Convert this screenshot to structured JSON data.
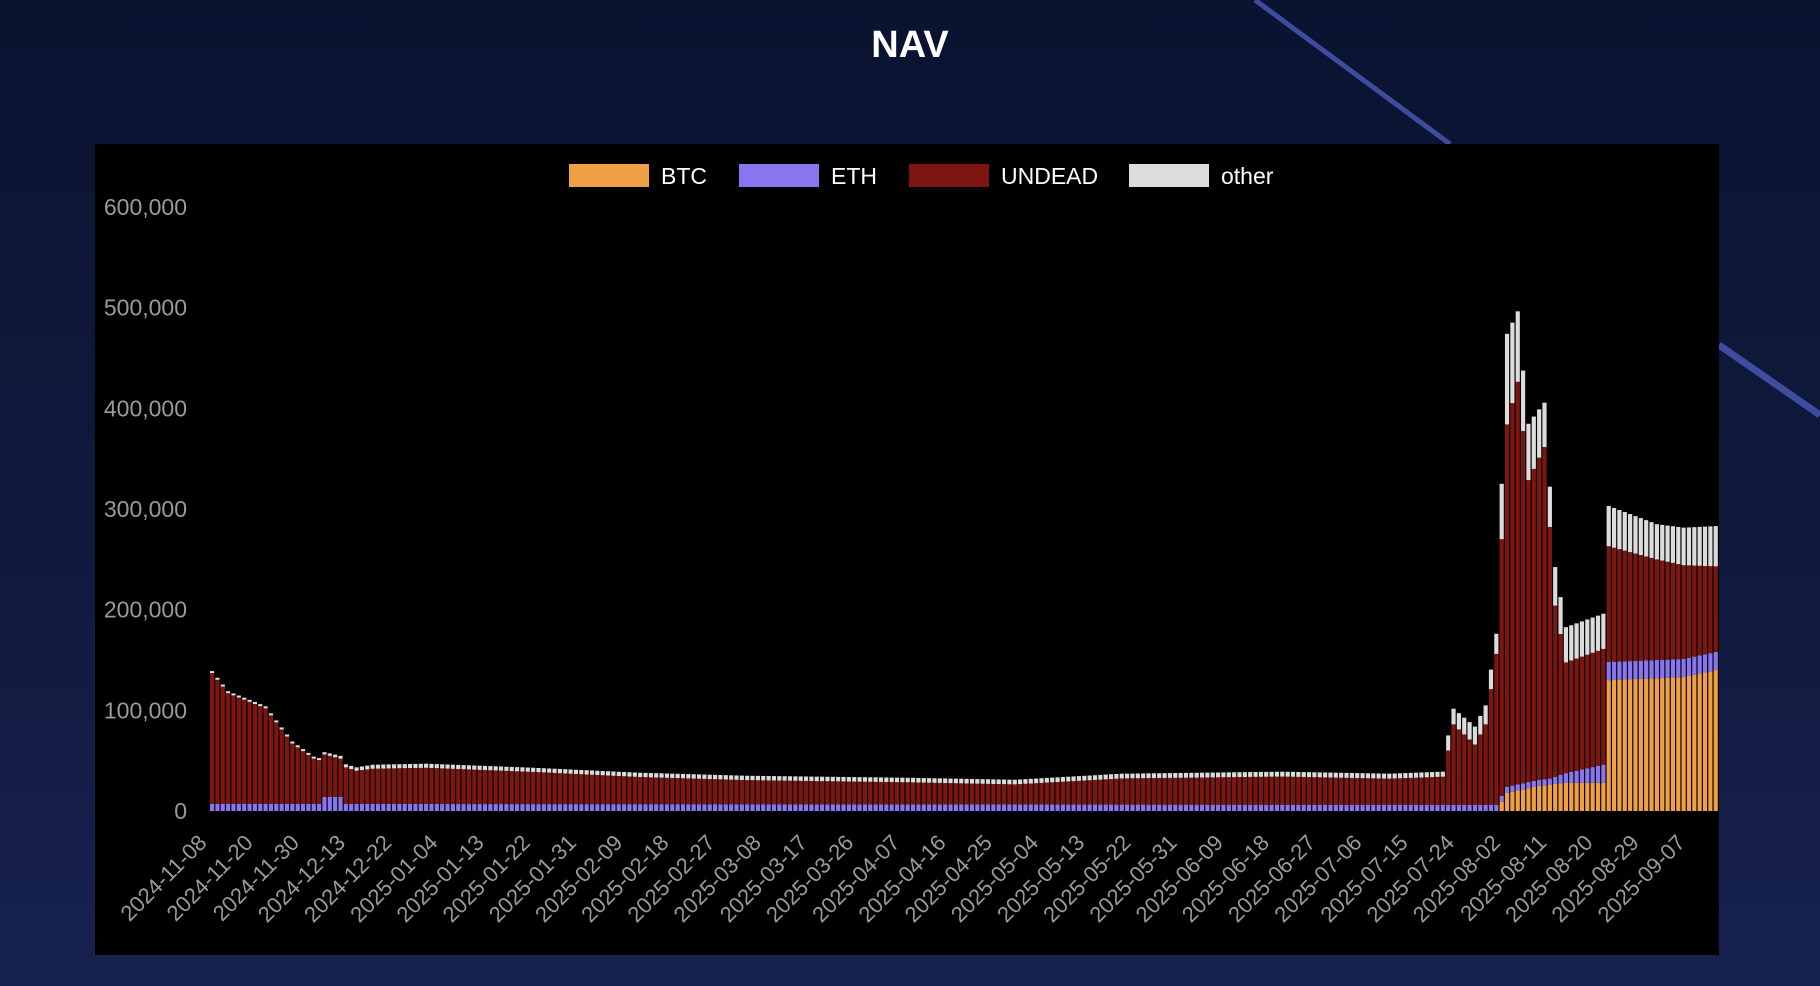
{
  "page": {
    "title": "NAV"
  },
  "colors": {
    "BTC": "#f0a044",
    "ETH": "#8a75f0",
    "UNDEAD": "#7d1610",
    "other": "#dcdcdc",
    "tick": "#9a9a9a",
    "panel": "#000000"
  },
  "chart_data": {
    "type": "bar",
    "stacked": true,
    "title": "",
    "xlabel": "",
    "ylabel": "",
    "ylim": [
      0,
      600000
    ],
    "y_ticks": [
      0,
      100000,
      200000,
      300000,
      400000,
      500000,
      600000
    ],
    "y_tick_labels": [
      "0",
      "100,000",
      "200,000",
      "300,000",
      "400,000",
      "500,000",
      "600,000"
    ],
    "legend": {
      "position": "top-center",
      "entries": [
        "BTC",
        "ETH",
        "UNDEAD",
        "other"
      ]
    },
    "grid": false,
    "x_tick_labels": [
      "2024-11-08",
      "2024-11-20",
      "2024-11-30",
      "2024-12-13",
      "2024-12-22",
      "2025-01-04",
      "2025-01-13",
      "2025-01-22",
      "2025-01-31",
      "2025-02-09",
      "2025-02-18",
      "2025-02-27",
      "2025-03-08",
      "2025-03-17",
      "2025-03-26",
      "2025-04-07",
      "2025-04-16",
      "2025-04-25",
      "2025-05-04",
      "2025-05-13",
      "2025-05-22",
      "2025-05-31",
      "2025-06-09",
      "2025-06-18",
      "2025-06-27",
      "2025-07-06",
      "2025-07-15",
      "2025-07-24",
      "2025-08-02",
      "2025-08-11",
      "2025-08-20",
      "2025-08-29",
      "2025-09-07"
    ],
    "series_keyframes": {
      "comment_free": true,
      "BTC": [
        [
          0,
          0
        ],
        [
          240,
          0
        ],
        [
          242,
          18000
        ],
        [
          248,
          25000
        ],
        [
          253,
          28000
        ],
        [
          260,
          28000
        ],
        [
          261,
          130000
        ],
        [
          275,
          133000
        ],
        [
          281,
          140000
        ]
      ],
      "ETH": [
        [
          0,
          7000
        ],
        [
          20,
          7000
        ],
        [
          21,
          14000
        ],
        [
          24,
          14000
        ],
        [
          25,
          7000
        ],
        [
          250,
          6000
        ],
        [
          260,
          18000
        ],
        [
          281,
          18000
        ]
      ],
      "UNDEAD": [
        [
          0,
          130000
        ],
        [
          3,
          110000
        ],
        [
          10,
          95000
        ],
        [
          15,
          60000
        ],
        [
          19,
          45000
        ],
        [
          24,
          38000
        ],
        [
          27,
          33000
        ],
        [
          30,
          35000
        ],
        [
          40,
          36000
        ],
        [
          60,
          32000
        ],
        [
          80,
          27000
        ],
        [
          100,
          24000
        ],
        [
          130,
          22000
        ],
        [
          150,
          20000
        ],
        [
          170,
          26000
        ],
        [
          200,
          28000
        ],
        [
          220,
          26000
        ],
        [
          230,
          28000
        ],
        [
          232,
          80000
        ],
        [
          236,
          60000
        ],
        [
          238,
          80000
        ],
        [
          240,
          150000
        ],
        [
          242,
          360000
        ],
        [
          244,
          400000
        ],
        [
          246,
          300000
        ],
        [
          249,
          330000
        ],
        [
          251,
          170000
        ],
        [
          253,
          110000
        ],
        [
          260,
          115000
        ],
        [
          261,
          115000
        ],
        [
          270,
          100000
        ],
        [
          281,
          85000
        ]
      ],
      "other": [
        [
          0,
          2000
        ],
        [
          20,
          2000
        ],
        [
          30,
          4000
        ],
        [
          230,
          5000
        ],
        [
          231,
          15000
        ],
        [
          240,
          20000
        ],
        [
          242,
          90000
        ],
        [
          245,
          60000
        ],
        [
          250,
          40000
        ],
        [
          253,
          35000
        ],
        [
          260,
          35000
        ],
        [
          261,
          40000
        ],
        [
          270,
          35000
        ],
        [
          281,
          40000
        ]
      ]
    },
    "n_bars": 282
  }
}
